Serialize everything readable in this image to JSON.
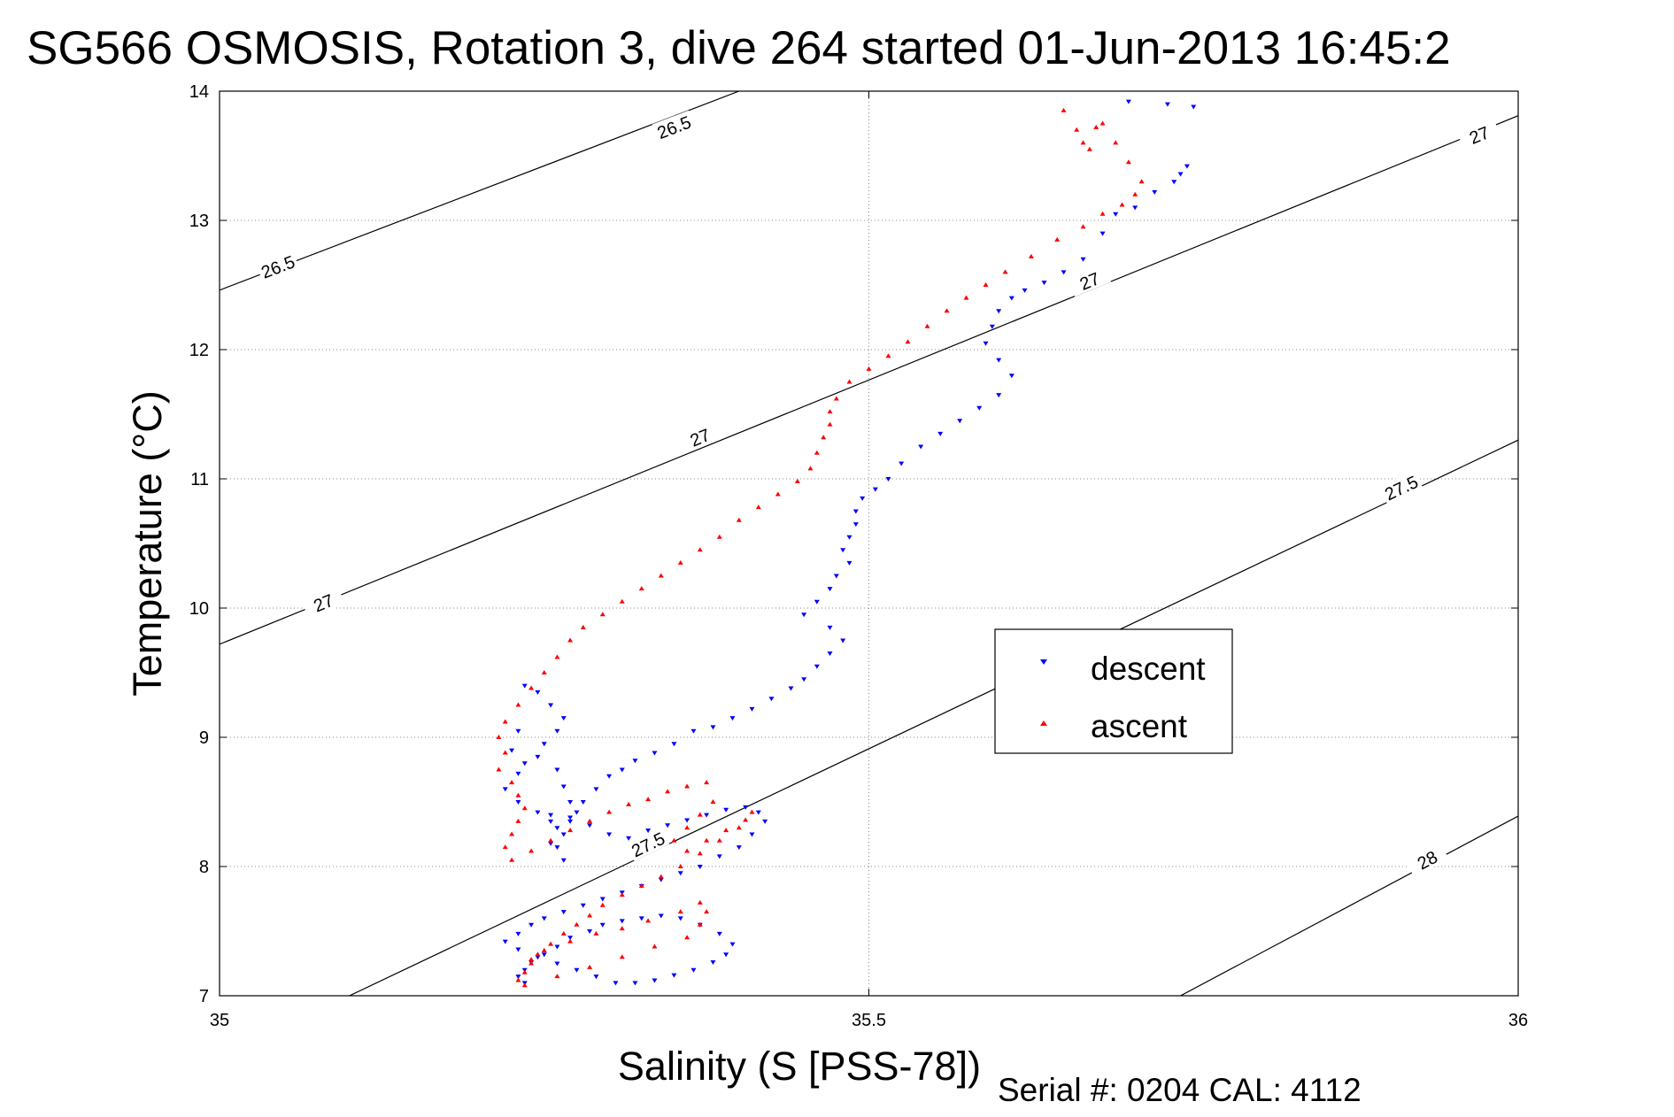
{
  "title": "SG566 OSMOSIS, Rotation 3, dive 264 started 01-Jun-2013 16:45:2",
  "footer": "Serial #: 0204  CAL: 4112",
  "chart_data": {
    "type": "scatter",
    "title": "SG566 OSMOSIS, Rotation 3, dive 264 started 01-Jun-2013 16:45:2",
    "xlabel": "Salinity (S [PSS-78])",
    "ylabel": "Temperature (°C)",
    "xlim": [
      35,
      36
    ],
    "ylim": [
      7,
      14
    ],
    "xticks": [
      35,
      35.5,
      36
    ],
    "xtick_labels": [
      "35",
      "35.5",
      "36"
    ],
    "yticks": [
      7,
      8,
      9,
      10,
      11,
      12,
      13,
      14
    ],
    "ytick_labels": [
      "7",
      "8",
      "9",
      "10",
      "11",
      "12",
      "13",
      "14"
    ],
    "grid": true,
    "legend_position": "center-right",
    "contours": [
      {
        "label": "26.5",
        "points": [
          [
            35.0,
            12.46
          ],
          [
            35.4,
            14.0
          ]
        ],
        "labels_at": [
          [
            35.045,
            12.64
          ],
          [
            35.35,
            13.72
          ]
        ]
      },
      {
        "label": "27",
        "points": [
          [
            35.0,
            9.72
          ],
          [
            36.0,
            13.81
          ]
        ],
        "labels_at": [
          [
            35.08,
            10.04
          ],
          [
            35.37,
            11.32
          ],
          [
            35.67,
            12.53
          ],
          [
            35.97,
            13.66
          ]
        ]
      },
      {
        "label": "27.5",
        "points": [
          [
            35.1,
            7.0
          ],
          [
            36.0,
            11.3
          ]
        ],
        "labels_at": [
          [
            35.33,
            8.17
          ],
          [
            35.91,
            10.93
          ]
        ]
      },
      {
        "label": "28",
        "points": [
          [
            35.74,
            7.0
          ],
          [
            36.0,
            8.39
          ]
        ],
        "labels_at": [
          [
            35.93,
            8.05
          ]
        ]
      }
    ],
    "series": [
      {
        "name": "descent",
        "color": "#0000ff",
        "marker": "triangle-down",
        "x": [
          35.7,
          35.73,
          35.75,
          35.745,
          35.74,
          35.735,
          35.72,
          35.705,
          35.69,
          35.68,
          35.665,
          35.65,
          35.635,
          35.62,
          35.61,
          35.6,
          35.595,
          35.59,
          35.6,
          35.61,
          35.6,
          35.585,
          35.57,
          35.555,
          35.54,
          35.525,
          35.515,
          35.505,
          35.495,
          35.49,
          35.49,
          35.485,
          35.48,
          35.485,
          35.475,
          35.47,
          35.46,
          35.45,
          35.47,
          35.48,
          35.47,
          35.46,
          35.45,
          35.44,
          35.425,
          35.41,
          35.395,
          35.38,
          35.365,
          35.35,
          35.335,
          35.32,
          35.31,
          35.3,
          35.29,
          35.28,
          35.275,
          35.27,
          35.265,
          35.26,
          35.265,
          35.255,
          35.26,
          35.255,
          35.27,
          35.265,
          35.26,
          35.245,
          35.25,
          35.26,
          35.265,
          35.255,
          35.245,
          35.235,
          35.23,
          35.225,
          35.235,
          35.23,
          35.22,
          35.23,
          35.245,
          35.255,
          35.27,
          35.285,
          35.3,
          35.315,
          35.33,
          35.345,
          35.36,
          35.375,
          35.39,
          35.405,
          35.415,
          35.42,
          35.41,
          35.4,
          35.385,
          35.37,
          35.355,
          35.34,
          35.325,
          35.31,
          35.295,
          35.28,
          35.265,
          35.25,
          35.24,
          35.23,
          35.22,
          35.23,
          35.245,
          35.26,
          35.275,
          35.29,
          35.305,
          35.32,
          35.335,
          35.35,
          35.365,
          35.38,
          35.39,
          35.395,
          35.385,
          35.37,
          35.355,
          35.34,
          35.325,
          35.31,
          35.295,
          35.285,
          35.27,
          35.26,
          35.25,
          35.24,
          35.235,
          35.23,
          35.235
        ],
        "y": [
          13.92,
          13.9,
          13.88,
          13.42,
          13.36,
          13.3,
          13.22,
          13.1,
          13.05,
          12.9,
          12.7,
          12.6,
          12.52,
          12.46,
          12.4,
          12.3,
          12.18,
          12.05,
          11.92,
          11.8,
          11.65,
          11.55,
          11.45,
          11.35,
          11.25,
          11.12,
          11.0,
          10.92,
          10.85,
          10.75,
          10.65,
          10.55,
          10.45,
          10.35,
          10.25,
          10.15,
          10.05,
          9.95,
          9.85,
          9.75,
          9.65,
          9.55,
          9.45,
          9.38,
          9.3,
          9.22,
          9.15,
          9.08,
          9.05,
          8.95,
          8.88,
          8.82,
          8.75,
          8.7,
          8.6,
          8.5,
          8.42,
          8.35,
          8.25,
          8.15,
          8.05,
          8.18,
          8.3,
          8.4,
          8.5,
          8.62,
          8.75,
          8.85,
          8.95,
          9.05,
          9.15,
          9.25,
          9.35,
          9.4,
          9.05,
          8.9,
          8.8,
          8.72,
          8.6,
          8.5,
          8.42,
          8.35,
          8.38,
          8.32,
          8.25,
          8.22,
          8.28,
          8.32,
          8.36,
          8.4,
          8.44,
          8.46,
          8.42,
          8.35,
          8.25,
          8.15,
          8.08,
          8.0,
          7.95,
          7.9,
          7.85,
          7.8,
          7.75,
          7.7,
          7.65,
          7.6,
          7.55,
          7.48,
          7.42,
          7.36,
          7.3,
          7.25,
          7.2,
          7.15,
          7.1,
          7.1,
          7.12,
          7.16,
          7.2,
          7.26,
          7.32,
          7.4,
          7.48,
          7.55,
          7.6,
          7.62,
          7.6,
          7.58,
          7.55,
          7.5,
          7.45,
          7.38,
          7.32,
          7.26,
          7.2,
          7.15,
          7.1
        ],
        "xlabel": "",
        "ylabel": ""
      },
      {
        "name": "ascent",
        "color": "#ff0000",
        "marker": "triangle-up",
        "x": [
          35.65,
          35.66,
          35.665,
          35.67,
          35.675,
          35.68,
          35.69,
          35.7,
          35.71,
          35.705,
          35.695,
          35.68,
          35.665,
          35.645,
          35.625,
          35.605,
          35.59,
          35.575,
          35.56,
          35.545,
          35.53,
          35.515,
          35.5,
          35.485,
          35.475,
          35.47,
          35.47,
          35.465,
          35.46,
          35.455,
          35.445,
          35.43,
          35.415,
          35.4,
          35.385,
          35.37,
          35.355,
          35.34,
          35.325,
          35.31,
          35.295,
          35.28,
          35.27,
          35.26,
          35.25,
          35.24,
          35.23,
          35.22,
          35.215,
          35.22,
          35.215,
          35.225,
          35.23,
          35.235,
          35.23,
          35.225,
          35.22,
          35.225,
          35.24,
          35.255,
          35.27,
          35.285,
          35.3,
          35.315,
          35.33,
          35.345,
          35.36,
          35.375,
          35.38,
          35.37,
          35.36,
          35.35,
          35.36,
          35.375,
          35.39,
          35.405,
          35.41,
          35.4,
          35.385,
          35.37,
          35.355,
          35.34,
          35.325,
          35.31,
          35.295,
          35.285,
          35.275,
          35.265,
          35.255,
          35.245,
          35.24,
          35.235,
          35.23,
          35.235,
          35.26,
          35.285,
          35.31,
          35.335,
          35.36,
          35.37,
          35.375,
          35.37,
          35.355,
          35.33,
          35.31,
          35.29,
          35.27,
          35.25,
          35.24
        ],
        "y": [
          13.85,
          13.7,
          13.6,
          13.55,
          13.72,
          13.75,
          13.6,
          13.45,
          13.3,
          13.2,
          13.12,
          13.05,
          12.95,
          12.85,
          12.72,
          12.6,
          12.5,
          12.4,
          12.3,
          12.18,
          12.06,
          11.95,
          11.85,
          11.75,
          11.62,
          11.52,
          11.42,
          11.32,
          11.2,
          11.08,
          10.98,
          10.88,
          10.78,
          10.68,
          10.55,
          10.45,
          10.35,
          10.25,
          10.15,
          10.05,
          9.95,
          9.85,
          9.75,
          9.62,
          9.5,
          9.38,
          9.25,
          9.12,
          9.0,
          8.88,
          8.75,
          8.65,
          8.55,
          8.45,
          8.35,
          8.25,
          8.15,
          8.05,
          8.12,
          8.2,
          8.28,
          8.35,
          8.42,
          8.48,
          8.52,
          8.58,
          8.62,
          8.65,
          8.5,
          8.4,
          8.3,
          8.2,
          8.12,
          8.2,
          8.28,
          8.36,
          8.42,
          8.3,
          8.2,
          8.1,
          8.0,
          7.92,
          7.85,
          7.78,
          7.7,
          7.62,
          7.55,
          7.48,
          7.4,
          7.32,
          7.25,
          7.18,
          7.12,
          7.08,
          7.15,
          7.22,
          7.3,
          7.38,
          7.45,
          7.55,
          7.65,
          7.72,
          7.65,
          7.58,
          7.52,
          7.48,
          7.42,
          7.35,
          7.28
        ]
      }
    ]
  }
}
